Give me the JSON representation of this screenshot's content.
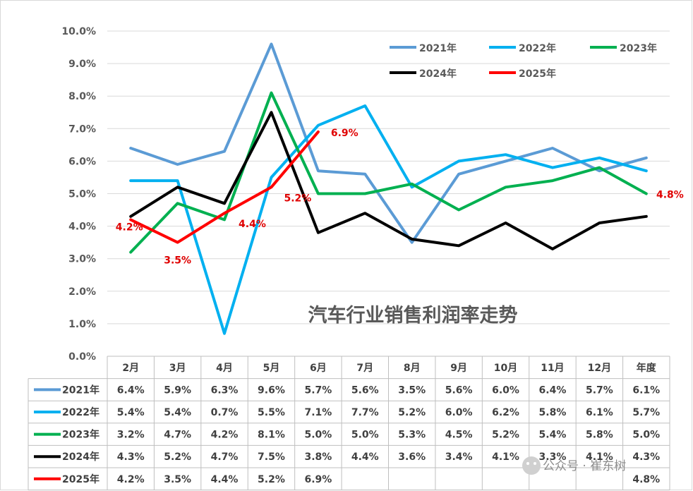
{
  "chart_data": {
    "type": "line",
    "title": "汽车行业销售利润率走势",
    "categories": [
      "2月",
      "3月",
      "4月",
      "5月",
      "6月",
      "7月",
      "8月",
      "9月",
      "10月",
      "11月",
      "12月",
      "年度"
    ],
    "y_ticks": [
      "0.0%",
      "1.0%",
      "2.0%",
      "3.0%",
      "4.0%",
      "5.0%",
      "6.0%",
      "7.0%",
      "8.0%",
      "9.0%",
      "10.0%"
    ],
    "ylim": [
      0,
      10
    ],
    "grid": true,
    "legend_position": "top-right",
    "series": [
      {
        "name": "2021年",
        "color": "#5b9bd5",
        "values": [
          6.4,
          5.9,
          6.3,
          9.6,
          5.7,
          5.6,
          3.5,
          5.6,
          6.0,
          6.4,
          5.7,
          6.1
        ],
        "labels": [
          "6.4%",
          "5.9%",
          "6.3%",
          "9.6%",
          "5.7%",
          "5.6%",
          "3.5%",
          "5.6%",
          "6.0%",
          "6.4%",
          "5.7%",
          "6.1%"
        ]
      },
      {
        "name": "2022年",
        "color": "#00b0f0",
        "values": [
          5.4,
          5.4,
          0.7,
          5.5,
          7.1,
          7.7,
          5.2,
          6.0,
          6.2,
          5.8,
          6.1,
          5.7
        ],
        "labels": [
          "5.4%",
          "5.4%",
          "0.7%",
          "5.5%",
          "7.1%",
          "7.7%",
          "5.2%",
          "6.0%",
          "6.2%",
          "5.8%",
          "6.1%",
          "5.7%"
        ]
      },
      {
        "name": "2023年",
        "color": "#00b050",
        "values": [
          3.2,
          4.7,
          4.2,
          8.1,
          5.0,
          5.0,
          5.3,
          4.5,
          5.2,
          5.4,
          5.8,
          5.0
        ],
        "labels": [
          "3.2%",
          "4.7%",
          "4.2%",
          "8.1%",
          "5.0%",
          "5.0%",
          "5.3%",
          "4.5%",
          "5.2%",
          "5.4%",
          "5.8%",
          "5.0%"
        ]
      },
      {
        "name": "2024年",
        "color": "#000000",
        "values": [
          4.3,
          5.2,
          4.7,
          7.5,
          3.8,
          4.4,
          3.6,
          3.4,
          4.1,
          3.3,
          4.1,
          4.3
        ],
        "labels": [
          "4.3%",
          "5.2%",
          "4.7%",
          "7.5%",
          "3.8%",
          "4.4%",
          "3.6%",
          "3.4%",
          "4.1%",
          "3.3%",
          "4.1%",
          "4.3%"
        ]
      },
      {
        "name": "2025年",
        "color": "#ff0000",
        "values": [
          4.2,
          3.5,
          4.4,
          5.2,
          6.9,
          null,
          null,
          null,
          null,
          null,
          null,
          4.8
        ],
        "labels": [
          "4.2%",
          "3.5%",
          "4.4%",
          "5.2%",
          "6.9%",
          "",
          "",
          "",
          "",
          "",
          "",
          "4.8%"
        ]
      }
    ],
    "data_labels": [
      {
        "text": "4.2%",
        "series": "2025年",
        "category": "2月"
      },
      {
        "text": "3.5%",
        "series": "2025年",
        "category": "3月"
      },
      {
        "text": "4.4%",
        "series": "2025年",
        "category": "4月"
      },
      {
        "text": "5.2%",
        "series": "2025年",
        "category": "5月"
      },
      {
        "text": "6.9%",
        "series": "2025年",
        "category": "6月"
      },
      {
        "text": "4.8%",
        "series": "2025年",
        "category": "年度"
      }
    ]
  },
  "watermark": "公众号 · 崔东树"
}
